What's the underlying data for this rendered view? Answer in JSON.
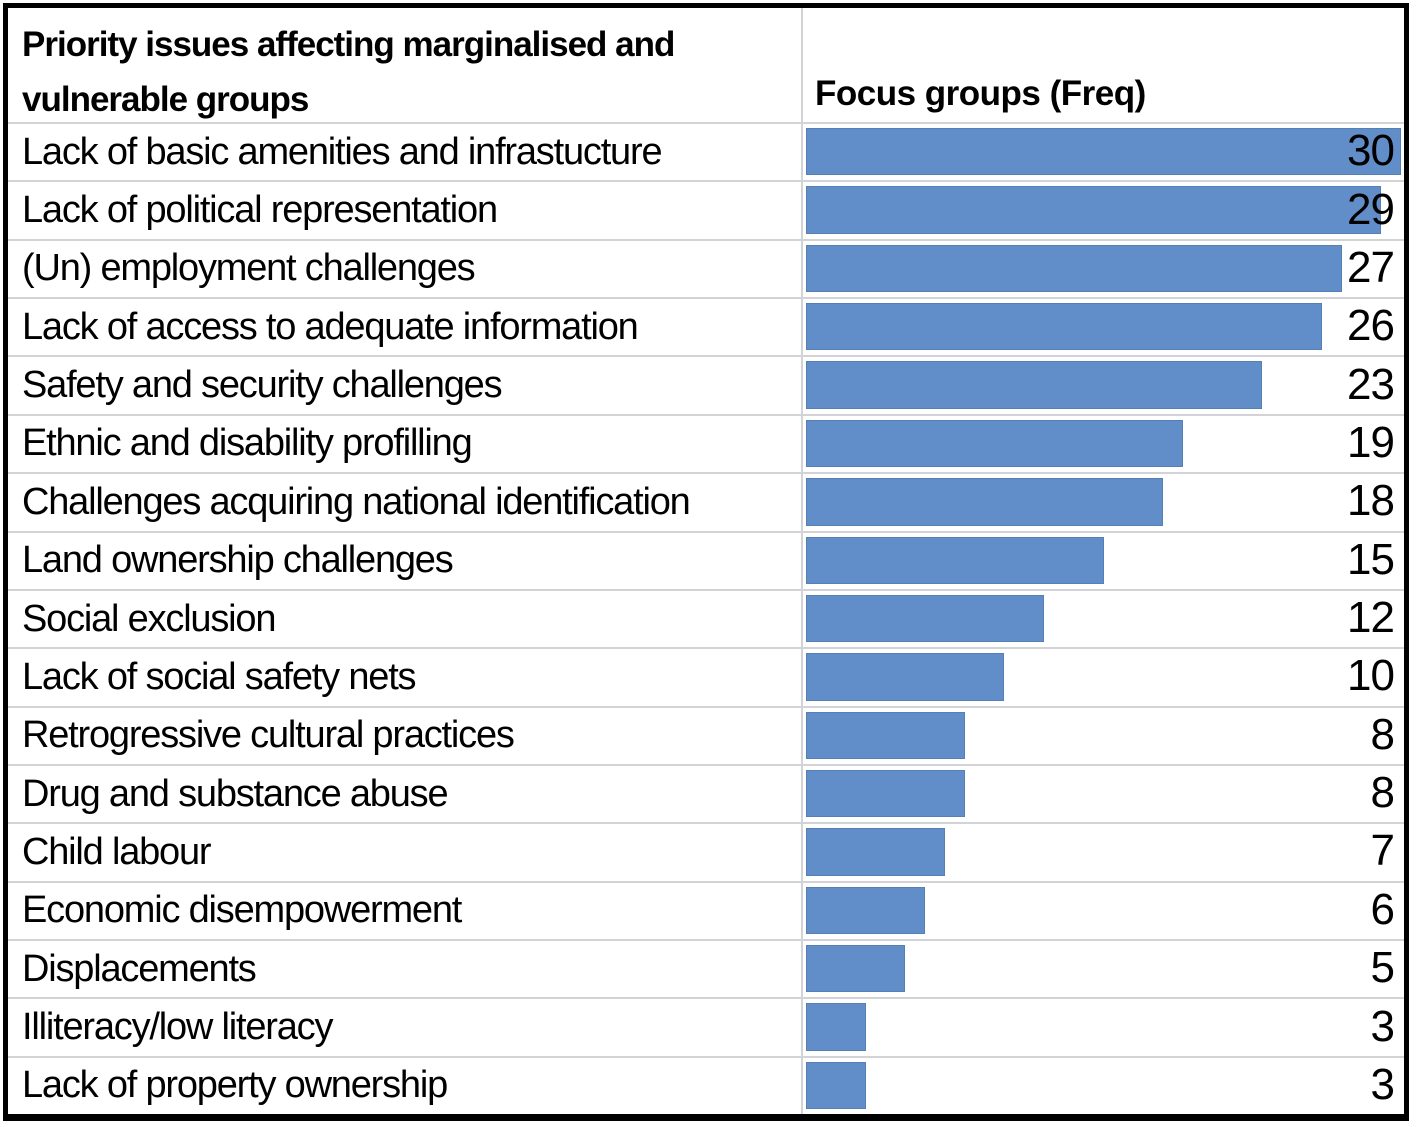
{
  "chart_data": {
    "type": "bar",
    "orientation": "horizontal",
    "title": "Priority issues affecting marginalised and vulnerable groups",
    "freq_label": "Focus groups (Freq)",
    "categories": [
      "Lack of basic amenities and infrastucture",
      "Lack of political representation",
      "(Un) employment challenges",
      "Lack of access to adequate information",
      "Safety and security challenges",
      "Ethnic and disability profilling",
      "Challenges acquiring national identification",
      "Land ownership challenges",
      "Social exclusion",
      "Lack of social safety nets",
      "Retrogressive cultural practices",
      "Drug and substance abuse",
      "Child labour",
      "Economic disempowerment",
      "Displacements",
      "Illiteracy/low literacy",
      "Lack of property ownership"
    ],
    "values": [
      30,
      29,
      27,
      26,
      23,
      19,
      18,
      15,
      12,
      10,
      8,
      8,
      7,
      6,
      5,
      3,
      3
    ],
    "xlim": [
      0,
      30
    ],
    "bar_color": "#618ec8",
    "gridline_color": "#d1d3d6",
    "data_labels": "inside-end",
    "legend": "none"
  }
}
